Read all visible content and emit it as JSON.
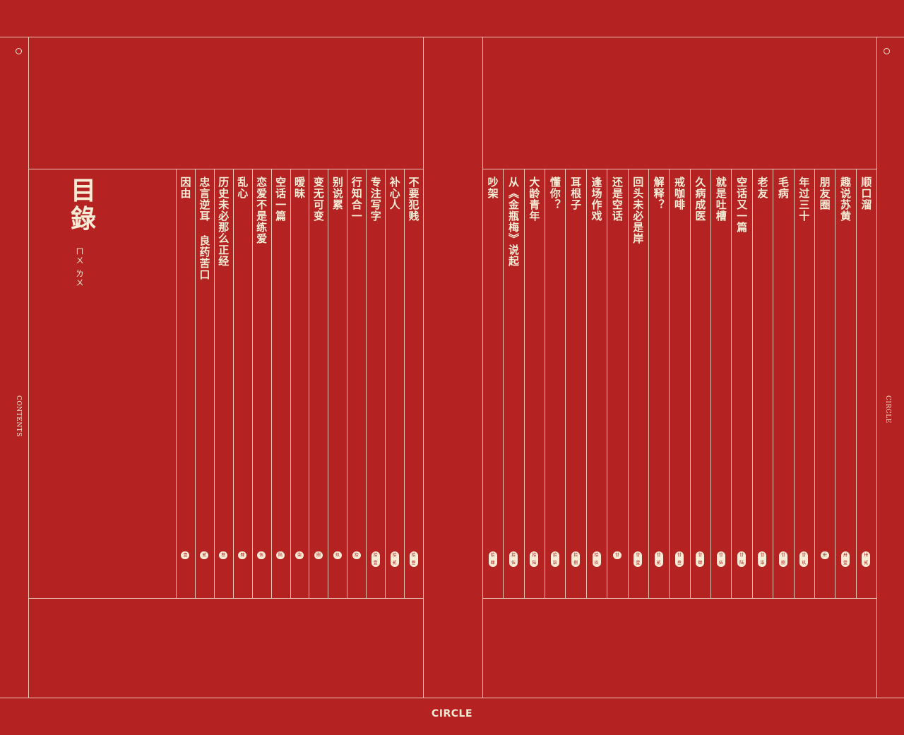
{
  "title": "目錄",
  "subtitle": "ㄇㄨ ㄌㄨ",
  "side_left": "CONTENTS",
  "side_right": "CIRCLE",
  "brand": "CIRCLE",
  "left_entries": [
    {
      "title": "因由",
      "num": "壹"
    },
    {
      "title": "忠言逆耳 良药苦口",
      "num": "贰"
    },
    {
      "title": "历史未必那么正经",
      "num": "叁"
    },
    {
      "title": "乱心",
      "num": "肆"
    },
    {
      "title": "恋爱不是练爱",
      "num": "伍"
    },
    {
      "title": "空话一篇",
      "num": "陆"
    },
    {
      "title": "暧昧",
      "num": "柒"
    },
    {
      "title": "变无可变",
      "num": "捌"
    },
    {
      "title": "别说累",
      "num": "玖"
    },
    {
      "title": "行知合一",
      "num": "拾"
    },
    {
      "title": "专注写字",
      "num": "拾壹"
    },
    {
      "title": "补心人",
      "num": "拾贰"
    },
    {
      "title": "不要犯贱",
      "num": "拾叁"
    }
  ],
  "right_entries": [
    {
      "title": "吵架",
      "num": "拾肆"
    },
    {
      "title": "从《金瓶梅》说起",
      "num": "拾伍"
    },
    {
      "title": "大龄青年",
      "num": "拾陆"
    },
    {
      "title": "懂你？",
      "num": "拾柒"
    },
    {
      "title": "耳根子",
      "num": "拾捌"
    },
    {
      "title": "逢场作戏",
      "num": "拾玖"
    },
    {
      "title": "还是空话",
      "num": "廿"
    },
    {
      "title": "回头未必是岸",
      "num": "廿壹"
    },
    {
      "title": "解释？",
      "num": "廿贰"
    },
    {
      "title": "戒咖啡",
      "num": "廿叁"
    },
    {
      "title": "久病成医",
      "num": "廿肆"
    },
    {
      "title": "就是吐槽",
      "num": "廿伍"
    },
    {
      "title": "空话又一篇",
      "num": "廿陆"
    },
    {
      "title": "老友",
      "num": "廿柒"
    },
    {
      "title": "毛病",
      "num": "廿捌"
    },
    {
      "title": "年过三十",
      "num": "廿玖"
    },
    {
      "title": "朋友圈",
      "num": "卅"
    },
    {
      "title": "趣说苏黄",
      "num": "卅壹"
    },
    {
      "title": "顺口溜",
      "num": "卅贰"
    }
  ]
}
